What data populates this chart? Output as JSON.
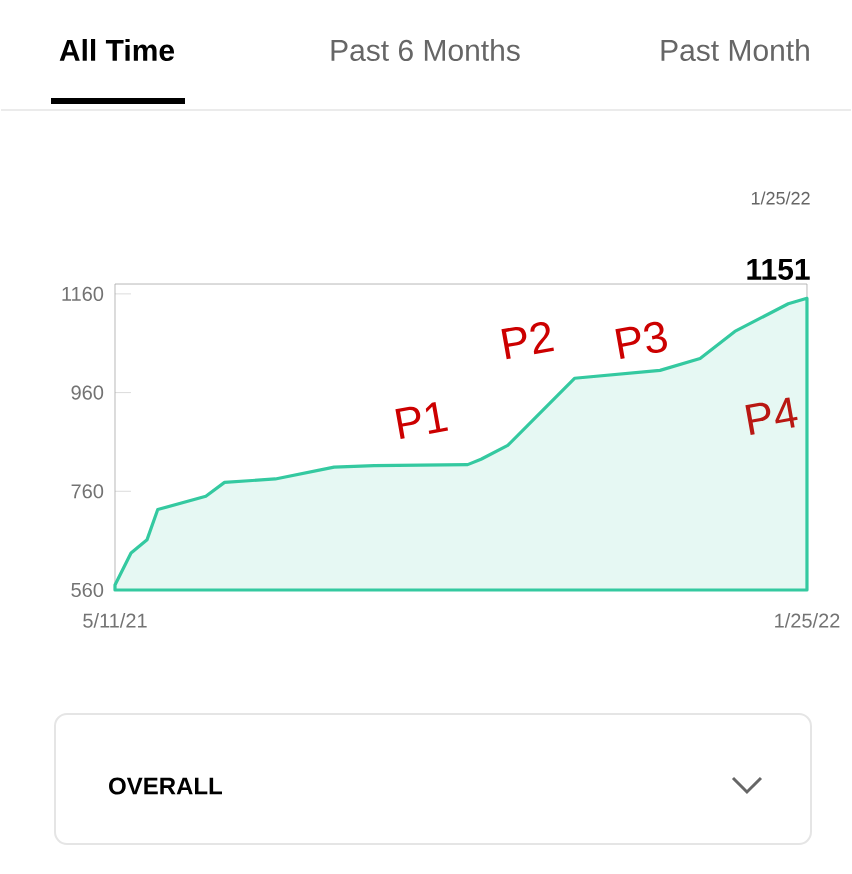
{
  "chart_data": {
    "type": "area",
    "color": "#34c9a0",
    "x": [
      "2021-05-11",
      "2021-05-17",
      "2021-05-23",
      "2021-05-27",
      "2021-06-14",
      "2021-06-21",
      "2021-07-10",
      "2021-08-01",
      "2021-08-16",
      "2021-09-20",
      "2021-09-25",
      "2021-10-05",
      "2021-10-15",
      "2021-10-30",
      "2021-12-01",
      "2021-12-16",
      "2021-12-29",
      "2022-01-18",
      "2022-01-25"
    ],
    "values": [
      570,
      635,
      662,
      723,
      750,
      778,
      785,
      809,
      812,
      814,
      825,
      853,
      907,
      989,
      1005,
      1029,
      1084,
      1140,
      1151
    ],
    "xlim": [
      "2021-05-11",
      "2022-01-25"
    ],
    "ylim": [
      560,
      1180
    ],
    "xticks": [
      {
        "value": "2021-05-11",
        "label": "5/11/21"
      },
      {
        "value": "2022-01-25",
        "label": "1/25/22"
      }
    ],
    "yticks": [
      560,
      760,
      960,
      1160
    ],
    "grid": false,
    "annotations": [
      "All Time",
      "Past 6 Months",
      "Past Month",
      "OVERALL",
      "1/25/22",
      {
        "text": "1151",
        "x": "2022-01-25",
        "y": 1151
      },
      "P1",
      "P2",
      "P3",
      "P4"
    ]
  }
}
